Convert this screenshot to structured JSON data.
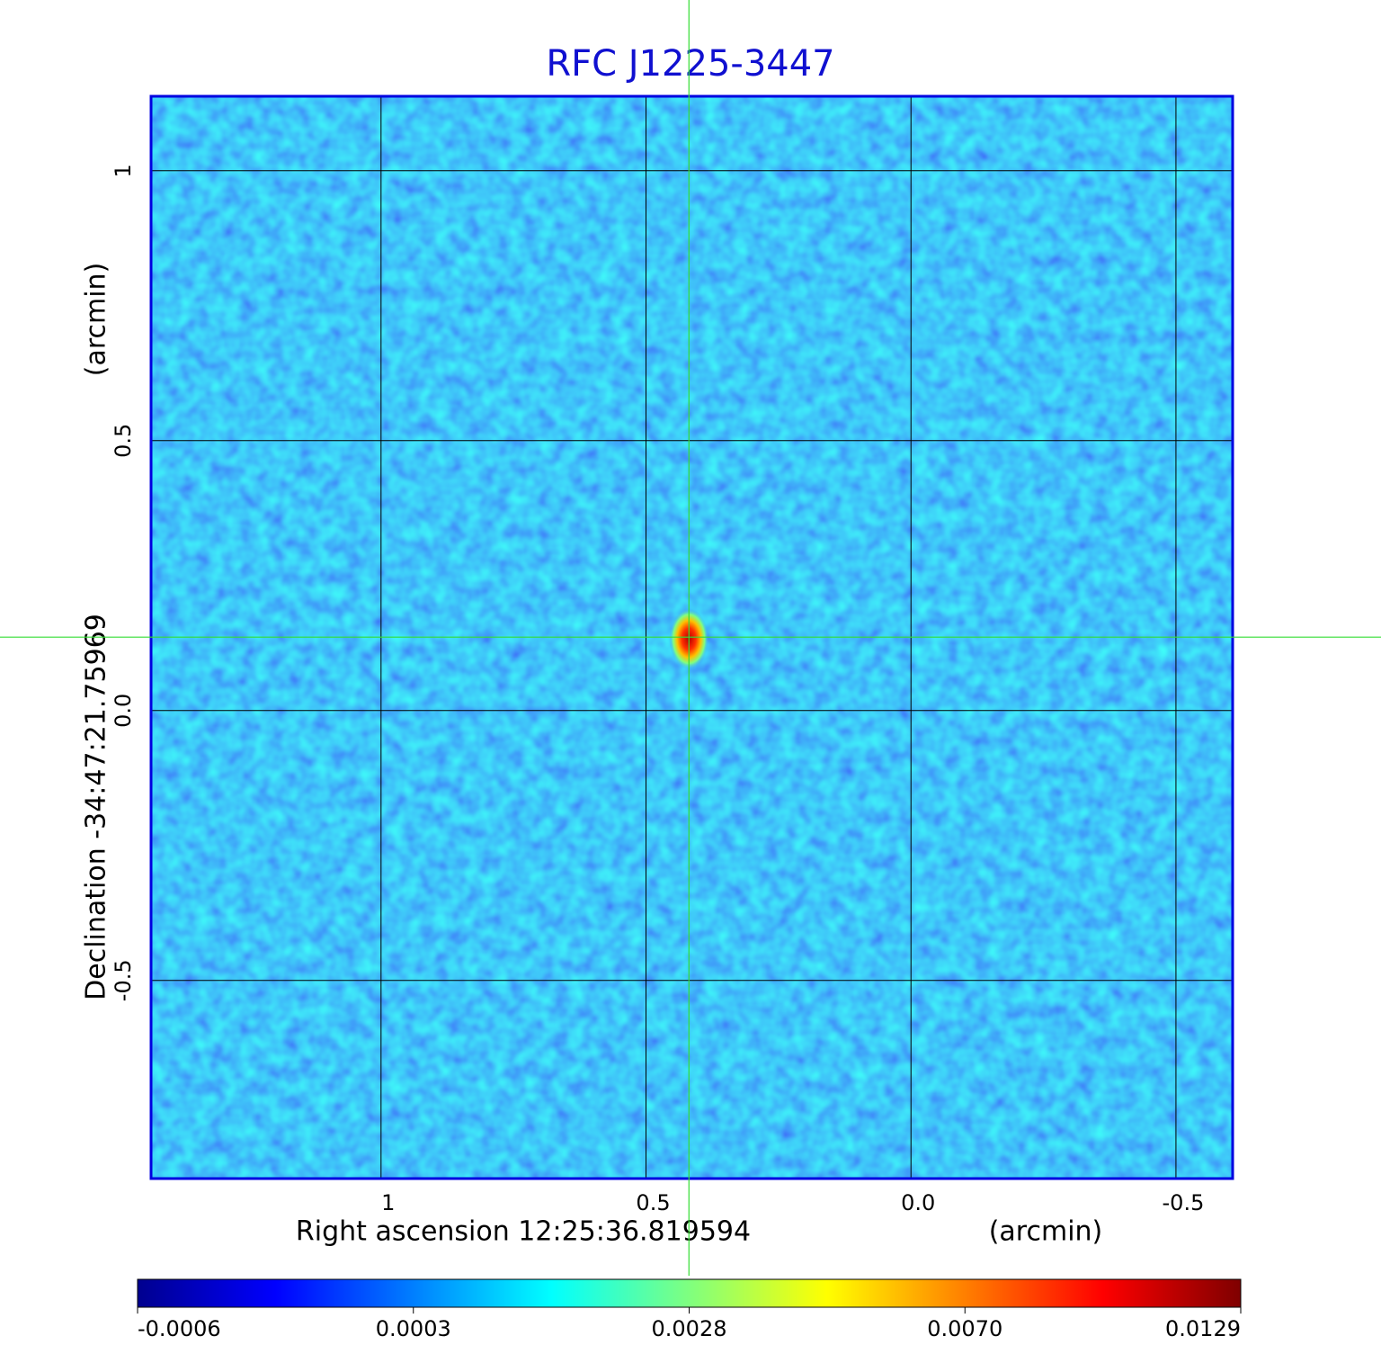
{
  "chart_data": {
    "type": "image",
    "title": "RFC J1225-3447",
    "xlabel": "Right ascension  12:25:36.819594",
    "xunit": "(arcmin)",
    "ylabel": "Declination  -34:47:21.75969",
    "yunit": "(arcmin)",
    "xlim": [
      1.434,
      -0.607
    ],
    "ylim": [
      -0.867,
      1.138
    ],
    "xticks": [
      1.0,
      0.5,
      {
        "value": 0,
        "label": "0.0"
      },
      -0.5
    ],
    "yticks": [
      1.0,
      0.5,
      {
        "value": 0,
        "label": "0.0"
      },
      -0.5
    ],
    "grid": true,
    "crosshair": {
      "x": 0.419,
      "y": 0.136
    },
    "colorbar": {
      "colormap": [
        "#00008f",
        "#0000ff",
        "#007fff",
        "#00ffff",
        "#7fff7f",
        "#ffff00",
        "#ff7f00",
        "#ff0000",
        "#7f0000"
      ],
      "ticks": [
        -0.0006,
        0.0003,
        0.0028,
        {
          "value": 0.007,
          "label": "0.0070"
        },
        0.0129
      ]
    }
  }
}
